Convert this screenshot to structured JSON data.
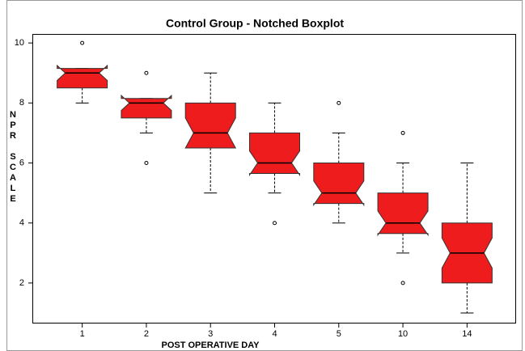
{
  "chart_data": {
    "type": "boxplot",
    "title": "Control Group - Notched Boxplot",
    "xlabel": "POST OPERATIVE DAY",
    "ylabel": "NPR SCALE",
    "categories": [
      "1",
      "2",
      "3",
      "4",
      "5",
      "10",
      "14"
    ],
    "color": "#ee1c1c",
    "boxes": [
      {
        "q1": 8.5,
        "median": 9,
        "q3": 9.15,
        "notch": [
          8.75,
          9.25
        ],
        "whisker_low": 8,
        "whisker_high": 9.15,
        "outliers": [
          10
        ]
      },
      {
        "q1": 7.5,
        "median": 8,
        "q3": 8.15,
        "notch": [
          7.75,
          8.25
        ],
        "whisker_low": 7,
        "whisker_high": 8.15,
        "outliers": [
          9,
          6
        ]
      },
      {
        "q1": 6.5,
        "median": 7,
        "q3": 8,
        "notch": [
          6.5,
          7.5
        ],
        "whisker_low": 5,
        "whisker_high": 9,
        "outliers": []
      },
      {
        "q1": 5.65,
        "median": 6,
        "q3": 7,
        "notch": [
          5.6,
          6.4
        ],
        "whisker_low": 5,
        "whisker_high": 8,
        "outliers": [
          4
        ]
      },
      {
        "q1": 4.65,
        "median": 5,
        "q3": 6,
        "notch": [
          4.6,
          5.4
        ],
        "whisker_low": 4,
        "whisker_high": 7,
        "outliers": [
          8
        ]
      },
      {
        "q1": 3.65,
        "median": 4,
        "q3": 5,
        "notch": [
          3.6,
          4.4
        ],
        "whisker_low": 3,
        "whisker_high": 6,
        "outliers": [
          7,
          2
        ]
      },
      {
        "q1": 2,
        "median": 3,
        "q3": 4,
        "notch": [
          2.5,
          3.5
        ],
        "whisker_low": 1,
        "whisker_high": 6,
        "outliers": []
      }
    ],
    "ylim": [
      0.65,
      10.3
    ],
    "yticks": [
      2,
      4,
      6,
      8,
      10
    ]
  }
}
